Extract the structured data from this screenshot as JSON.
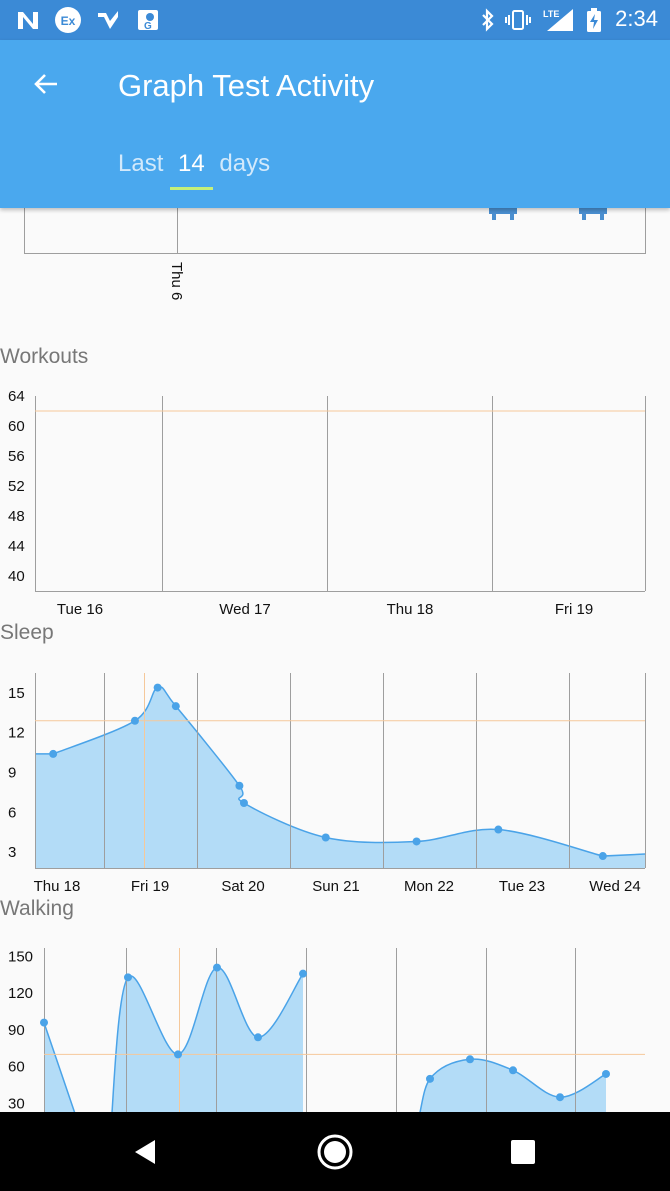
{
  "status_bar": {
    "time": "2:34",
    "icons": [
      "n-icon",
      "ex-icon",
      "checkmark-icon",
      "maps-icon",
      "bluetooth-icon",
      "vibrate-icon",
      "lte-signal-icon",
      "battery-charging-icon"
    ],
    "lte_label": "LTE"
  },
  "app_bar": {
    "title": "Graph Test Activity",
    "subtitle_prefix": "Last",
    "subtitle_value": "14",
    "subtitle_suffix": "days",
    "underline_color": "#c5f07b",
    "background": "#4aa8ee"
  },
  "top_chart": {
    "x_label": "Thu 6"
  },
  "workouts": {
    "label": "Workouts",
    "chart_data": {
      "type": "line",
      "y_ticks": [
        "64",
        "60",
        "56",
        "52",
        "48",
        "44",
        "40"
      ],
      "ylim": [
        38,
        64
      ],
      "categories": [
        "Tue 16",
        "Wed 17",
        "Thu 18",
        "Fri 19"
      ],
      "reference_line": 62,
      "series": []
    }
  },
  "sleep": {
    "label": "Sleep",
    "chart_data": {
      "type": "area",
      "y_ticks": [
        "15",
        "12",
        "9",
        "6",
        "3"
      ],
      "ylim": [
        1.8,
        16.5
      ],
      "categories": [
        "Thu 18",
        "Fri 19",
        "Sat 20",
        "Sun 21",
        "Mon 22",
        "Tue 23",
        "Wed 24"
      ],
      "reference_line": 12.9,
      "points": [
        {
          "x": 0.2,
          "y": 10.4
        },
        {
          "x": 1.1,
          "y": 12.9
        },
        {
          "x": 1.35,
          "y": 15.4
        },
        {
          "x": 1.55,
          "y": 14.0
        },
        {
          "x": 2.25,
          "y": 8.0
        },
        {
          "x": 2.3,
          "y": 6.7
        },
        {
          "x": 3.2,
          "y": 4.1
        },
        {
          "x": 4.2,
          "y": 3.8
        },
        {
          "x": 5.1,
          "y": 4.7
        },
        {
          "x": 6.25,
          "y": 2.7
        }
      ]
    }
  },
  "walking": {
    "label": "Walking",
    "chart_data": {
      "type": "area",
      "y_ticks": [
        "150",
        "120",
        "90",
        "60",
        "30"
      ],
      "ylim": [
        0,
        157
      ],
      "reference_line": 70,
      "points": [
        {
          "x": 0,
          "y": 96
        },
        {
          "x": 1,
          "y": 0
        },
        {
          "x": 1.5,
          "y": 0
        },
        {
          "x": 2,
          "y": 133
        },
        {
          "x": 3,
          "y": 70
        },
        {
          "x": 4,
          "y": 141
        },
        {
          "x": 5,
          "y": 84
        },
        {
          "x": 6,
          "y": 136
        },
        {
          "x": 7,
          "y": 0
        },
        {
          "x": 8,
          "y": 0
        },
        {
          "x": 9,
          "y": 50
        },
        {
          "x": 10,
          "y": 66
        },
        {
          "x": 11,
          "y": 57
        },
        {
          "x": 12,
          "y": 35
        },
        {
          "x": 13,
          "y": 54
        }
      ]
    }
  },
  "colors": {
    "line": "#4aa3e8",
    "fill": "#b3dcf7",
    "reference": "#f5c89a",
    "grid": "#9e9e9e"
  },
  "nav": {
    "buttons": [
      "back-triangle-icon",
      "home-circle-icon",
      "recents-square-icon"
    ]
  }
}
